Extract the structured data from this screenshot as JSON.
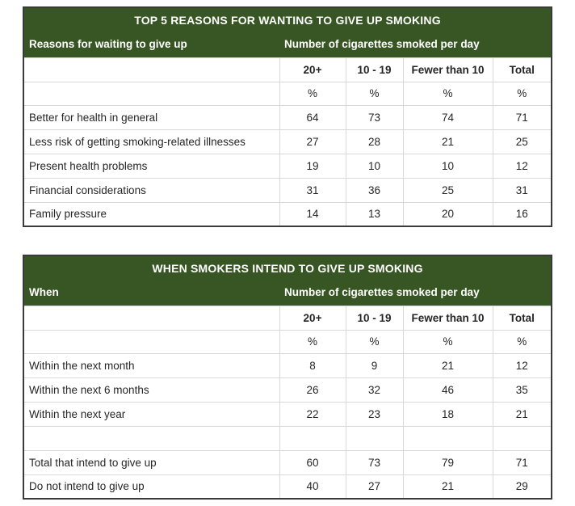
{
  "colors": {
    "header_bg": "#375623",
    "header_text": "#ffffff",
    "body_text": "#262626",
    "outer_border": "#3a3a3a",
    "grid_line": "#d9d9d9",
    "page_bg": "#ffffff"
  },
  "tables": [
    {
      "title": "TOP 5 REASONS FOR WANTING TO GIVE UP SMOKING",
      "stub_header": "Reasons for waiting to give up",
      "span_header": "Number of cigarettes smoked per day",
      "columns": [
        "20+",
        "10 - 19",
        "Fewer than 10",
        "Total"
      ],
      "unit": "%",
      "rows": [
        {
          "label": "Better for health in general",
          "values": [
            "64",
            "73",
            "74",
            "71"
          ]
        },
        {
          "label": "Less risk of getting smoking-related illnesses",
          "values": [
            "27",
            "28",
            "21",
            "25"
          ]
        },
        {
          "label": "Present health problems",
          "values": [
            "19",
            "10",
            "10",
            "12"
          ]
        },
        {
          "label": "Financial considerations",
          "values": [
            "31",
            "36",
            "25",
            "31"
          ]
        },
        {
          "label": "Family pressure",
          "values": [
            "14",
            "13",
            "20",
            "16"
          ]
        }
      ]
    },
    {
      "title": "WHEN SMOKERS INTEND TO GIVE UP SMOKING",
      "stub_header": "When",
      "span_header": "Number of cigarettes smoked per day",
      "columns": [
        "20+",
        "10 - 19",
        "Fewer than 10",
        "Total"
      ],
      "unit": "%",
      "rows": [
        {
          "label": "Within the next month",
          "values": [
            "8",
            "9",
            "21",
            "12"
          ]
        },
        {
          "label": "Within the next 6 months",
          "values": [
            "26",
            "32",
            "46",
            "35"
          ]
        },
        {
          "label": "Within the next year",
          "values": [
            "22",
            "23",
            "18",
            "21"
          ]
        },
        {
          "label": "",
          "values": [
            "",
            "",
            "",
            ""
          ]
        },
        {
          "label": "Total that intend to give up",
          "values": [
            "60",
            "73",
            "79",
            "71"
          ]
        },
        {
          "label": "Do not intend to give up",
          "values": [
            "40",
            "27",
            "21",
            "29"
          ]
        }
      ]
    }
  ],
  "chart_data": [
    {
      "type": "table",
      "title": "TOP 5 REASONS FOR WANTING TO GIVE UP SMOKING",
      "stub_header": "Reasons for waiting to give up",
      "group_header": "Number of cigarettes smoked per day",
      "columns": [
        "20+",
        "10 - 19",
        "Fewer than 10",
        "Total"
      ],
      "unit": "%",
      "categories": [
        "Better for health in general",
        "Less risk of getting smoking-related illnesses",
        "Present health problems",
        "Financial considerations",
        "Family pressure"
      ],
      "series": [
        {
          "name": "20+",
          "values": [
            64,
            27,
            19,
            31,
            14
          ]
        },
        {
          "name": "10 - 19",
          "values": [
            73,
            28,
            10,
            36,
            13
          ]
        },
        {
          "name": "Fewer than 10",
          "values": [
            74,
            21,
            10,
            25,
            20
          ]
        },
        {
          "name": "Total",
          "values": [
            71,
            25,
            12,
            31,
            16
          ]
        }
      ]
    },
    {
      "type": "table",
      "title": "WHEN SMOKERS INTEND TO GIVE UP SMOKING",
      "stub_header": "When",
      "group_header": "Number of cigarettes smoked per day",
      "columns": [
        "20+",
        "10 - 19",
        "Fewer than 10",
        "Total"
      ],
      "unit": "%",
      "categories": [
        "Within the next month",
        "Within the next 6 months",
        "Within the next year",
        "Total that intend to give up",
        "Do not intend to give up"
      ],
      "series": [
        {
          "name": "20+",
          "values": [
            8,
            26,
            22,
            60,
            40
          ]
        },
        {
          "name": "10 - 19",
          "values": [
            9,
            32,
            23,
            73,
            27
          ]
        },
        {
          "name": "Fewer than 10",
          "values": [
            21,
            46,
            18,
            79,
            21
          ]
        },
        {
          "name": "Total",
          "values": [
            12,
            35,
            21,
            71,
            29
          ]
        }
      ]
    }
  ]
}
